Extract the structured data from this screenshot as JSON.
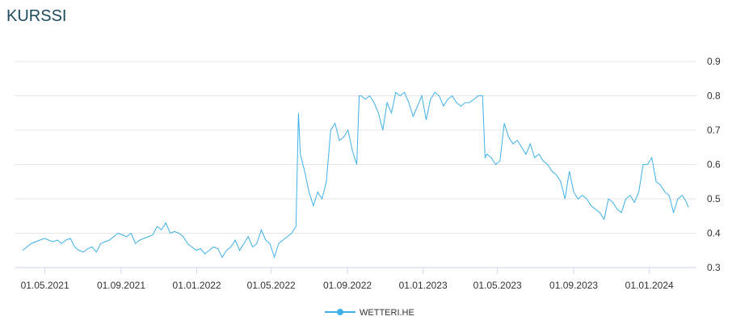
{
  "chart_data": {
    "type": "line",
    "title": "KURSSI",
    "x": [
      "26.03.2021",
      "02.04.2021",
      "09.04.2021",
      "16.04.2021",
      "23.04.2021",
      "30.04.2021",
      "07.05.2021",
      "14.05.2021",
      "21.05.2021",
      "28.05.2021",
      "04.06.2021",
      "11.06.2021",
      "18.06.2021",
      "25.06.2021",
      "02.07.2021",
      "09.07.2021",
      "16.07.2021",
      "23.07.2021",
      "30.07.2021",
      "06.08.2021",
      "13.08.2021",
      "20.08.2021",
      "27.08.2021",
      "03.09.2021",
      "10.09.2021",
      "17.09.2021",
      "24.09.2021",
      "01.10.2021",
      "08.10.2021",
      "15.10.2021",
      "22.10.2021",
      "29.10.2021",
      "05.11.2021",
      "12.11.2021",
      "19.11.2021",
      "26.11.2021",
      "03.12.2021",
      "10.12.2021",
      "17.12.2021",
      "24.12.2021",
      "31.12.2021",
      "07.01.2022",
      "14.01.2022",
      "21.01.2022",
      "28.01.2022",
      "04.02.2022",
      "11.02.2022",
      "18.02.2022",
      "25.02.2022",
      "04.03.2022",
      "11.03.2022",
      "18.03.2022",
      "25.03.2022",
      "01.04.2022",
      "08.04.2022",
      "15.04.2022",
      "22.04.2022",
      "29.04.2022",
      "06.05.2022",
      "13.05.2022",
      "20.05.2022",
      "27.05.2022",
      "03.06.2022",
      "10.06.2022",
      "14.06.2022",
      "17.06.2022",
      "24.06.2022",
      "01.07.2022",
      "08.07.2022",
      "15.07.2022",
      "22.07.2022",
      "29.07.2022",
      "05.08.2022",
      "12.08.2022",
      "19.08.2022",
      "26.08.2022",
      "02.09.2022",
      "09.09.2022",
      "16.09.2022",
      "20.09.2022",
      "23.09.2022",
      "30.09.2022",
      "07.10.2022",
      "14.10.2022",
      "21.10.2022",
      "28.10.2022",
      "04.11.2022",
      "11.11.2022",
      "18.11.2022",
      "25.11.2022",
      "02.12.2022",
      "09.12.2022",
      "16.12.2022",
      "23.12.2022",
      "30.12.2022",
      "06.01.2023",
      "13.01.2023",
      "20.01.2023",
      "27.01.2023",
      "03.02.2023",
      "10.02.2023",
      "17.02.2023",
      "24.02.2023",
      "03.03.2023",
      "10.03.2023",
      "17.03.2023",
      "24.03.2023",
      "31.03.2023",
      "07.04.2023",
      "11.04.2023",
      "14.04.2023",
      "21.04.2023",
      "28.04.2023",
      "05.05.2023",
      "12.05.2023",
      "19.05.2023",
      "26.05.2023",
      "02.06.2023",
      "09.06.2023",
      "16.06.2023",
      "23.06.2023",
      "30.06.2023",
      "07.07.2023",
      "14.07.2023",
      "21.07.2023",
      "28.07.2023",
      "04.08.2023",
      "11.08.2023",
      "18.08.2023",
      "25.08.2023",
      "01.09.2023",
      "08.09.2023",
      "15.09.2023",
      "22.09.2023",
      "29.09.2023",
      "06.10.2023",
      "13.10.2023",
      "20.10.2023",
      "27.10.2023",
      "03.11.2023",
      "10.11.2023",
      "17.11.2023",
      "24.11.2023",
      "01.12.2023",
      "08.12.2023",
      "15.12.2023",
      "22.12.2023",
      "29.12.2023",
      "05.01.2024",
      "12.01.2024",
      "19.01.2024",
      "26.01.2024",
      "02.02.2024",
      "09.02.2024",
      "16.02.2024",
      "23.02.2024",
      "01.03.2024",
      "04.03.2024"
    ],
    "series": [
      {
        "name": "WETTERI.HE",
        "color": "#3fb1e8",
        "values": [
          0.35,
          0.36,
          0.37,
          0.375,
          0.38,
          0.385,
          0.38,
          0.375,
          0.38,
          0.37,
          0.38,
          0.385,
          0.36,
          0.35,
          0.345,
          0.355,
          0.36,
          0.345,
          0.37,
          0.375,
          0.38,
          0.39,
          0.4,
          0.395,
          0.39,
          0.4,
          0.37,
          0.38,
          0.385,
          0.39,
          0.395,
          0.42,
          0.41,
          0.43,
          0.4,
          0.405,
          0.4,
          0.39,
          0.37,
          0.36,
          0.35,
          0.355,
          0.34,
          0.35,
          0.36,
          0.355,
          0.33,
          0.35,
          0.36,
          0.38,
          0.35,
          0.37,
          0.39,
          0.36,
          0.37,
          0.41,
          0.38,
          0.37,
          0.33,
          0.37,
          0.38,
          0.39,
          0.4,
          0.42,
          0.75,
          0.63,
          0.58,
          0.52,
          0.48,
          0.52,
          0.5,
          0.55,
          0.7,
          0.72,
          0.67,
          0.68,
          0.7,
          0.64,
          0.6,
          0.8,
          0.8,
          0.79,
          0.8,
          0.78,
          0.75,
          0.7,
          0.78,
          0.75,
          0.81,
          0.8,
          0.81,
          0.78,
          0.74,
          0.77,
          0.8,
          0.73,
          0.79,
          0.81,
          0.8,
          0.77,
          0.79,
          0.8,
          0.78,
          0.77,
          0.78,
          0.78,
          0.79,
          0.8,
          0.8,
          0.62,
          0.63,
          0.62,
          0.6,
          0.61,
          0.72,
          0.68,
          0.66,
          0.67,
          0.65,
          0.63,
          0.66,
          0.62,
          0.63,
          0.61,
          0.6,
          0.58,
          0.57,
          0.55,
          0.5,
          0.58,
          0.52,
          0.5,
          0.51,
          0.5,
          0.48,
          0.47,
          0.46,
          0.44,
          0.5,
          0.49,
          0.47,
          0.46,
          0.5,
          0.51,
          0.49,
          0.52,
          0.6,
          0.6,
          0.62,
          0.55,
          0.54,
          0.52,
          0.51,
          0.46,
          0.5,
          0.51,
          0.49,
          0.475
        ]
      }
    ],
    "xlim": [
      "13.03.2021",
      "17.03.2024"
    ],
    "xticks": [
      "01.05.2021",
      "01.09.2021",
      "01.01.2022",
      "01.05.2022",
      "01.09.2022",
      "01.01.2023",
      "01.05.2023",
      "01.09.2023",
      "01.01.2024"
    ],
    "ylim": [
      0.3,
      0.9
    ],
    "yticks": [
      0.3,
      0.4,
      0.5,
      0.6,
      0.7,
      0.8,
      0.9
    ],
    "grid": true
  }
}
